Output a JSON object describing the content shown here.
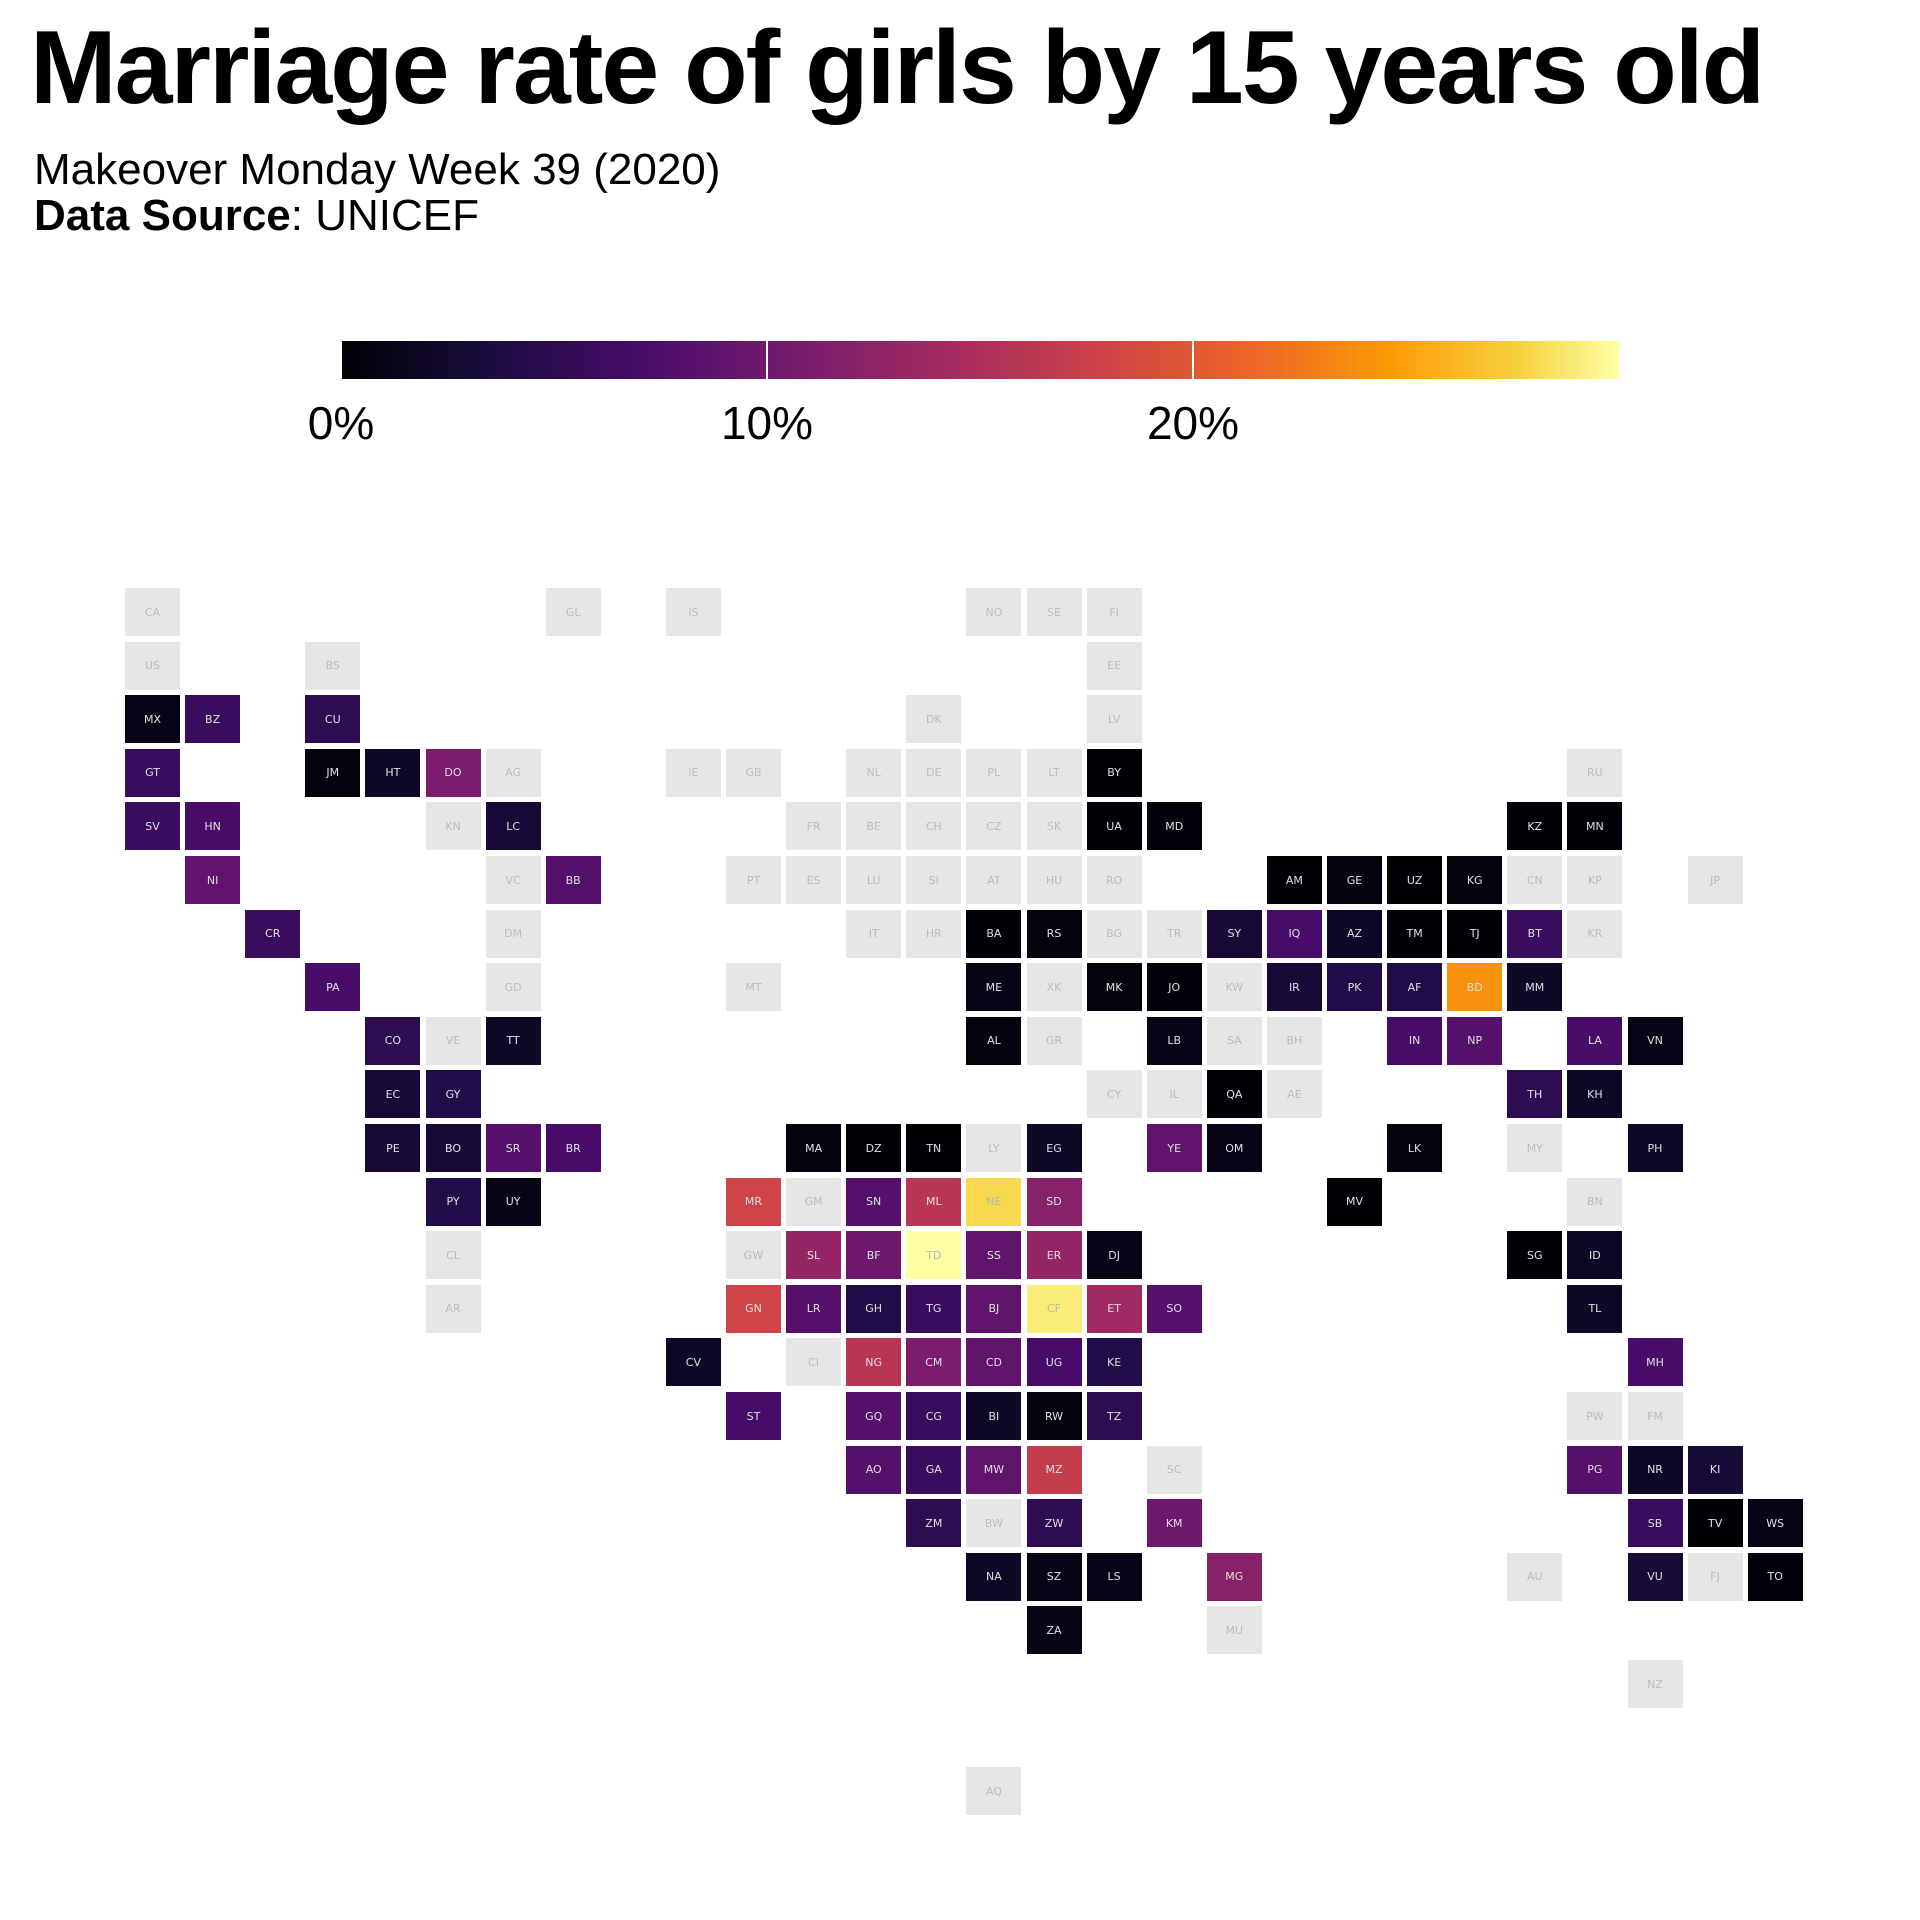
{
  "header": {
    "title": "Marriage rate of girls by 15  years old",
    "subtitle": "Makeover Monday  Week 39 (2020)",
    "source_label": "Data Source",
    "source_value": ": UNICEF"
  },
  "legend": {
    "ticks": [
      {
        "value": 0,
        "label": "0%"
      },
      {
        "value": 10,
        "label": "10%"
      },
      {
        "value": 20,
        "label": "20%"
      }
    ],
    "min": 0,
    "max": 30,
    "palette": "inferno",
    "no_data_color": "#e6e6e6"
  },
  "map_data": {
    "tiles": [
      {
        "code": "CA",
        "col": 0,
        "row": 0,
        "value": null
      },
      {
        "code": "GL",
        "col": 7,
        "row": 0,
        "value": null
      },
      {
        "code": "IS",
        "col": 9,
        "row": 0,
        "value": null
      },
      {
        "code": "NO",
        "col": 14,
        "row": 0,
        "value": null
      },
      {
        "code": "SE",
        "col": 15,
        "row": 0,
        "value": null
      },
      {
        "code": "FI",
        "col": 16,
        "row": 0,
        "value": null
      },
      {
        "code": "US",
        "col": 0,
        "row": 1,
        "value": null
      },
      {
        "code": "BS",
        "col": 3,
        "row": 1,
        "value": null
      },
      {
        "code": "EE",
        "col": 16,
        "row": 1,
        "value": null
      },
      {
        "code": "MX",
        "col": 0,
        "row": 2,
        "value": 1
      },
      {
        "code": "BZ",
        "col": 1,
        "row": 2,
        "value": 6
      },
      {
        "code": "CU",
        "col": 3,
        "row": 2,
        "value": 5
      },
      {
        "code": "DK",
        "col": 13,
        "row": 2,
        "value": null
      },
      {
        "code": "LV",
        "col": 16,
        "row": 2,
        "value": null
      },
      {
        "code": "GT",
        "col": 0,
        "row": 3,
        "value": 6
      },
      {
        "code": "JM",
        "col": 3,
        "row": 3,
        "value": 0.5
      },
      {
        "code": "HT",
        "col": 4,
        "row": 3,
        "value": 2
      },
      {
        "code": "DO",
        "col": 5,
        "row": 3,
        "value": 11
      },
      {
        "code": "AG",
        "col": 6,
        "row": 3,
        "value": null
      },
      {
        "code": "IE",
        "col": 9,
        "row": 3,
        "value": null
      },
      {
        "code": "GB",
        "col": 10,
        "row": 3,
        "value": null
      },
      {
        "code": "NL",
        "col": 12,
        "row": 3,
        "value": null
      },
      {
        "code": "DE",
        "col": 13,
        "row": 3,
        "value": null
      },
      {
        "code": "PL",
        "col": 14,
        "row": 3,
        "value": null
      },
      {
        "code": "LT",
        "col": 15,
        "row": 3,
        "value": null
      },
      {
        "code": "BY",
        "col": 16,
        "row": 3,
        "value": 0
      },
      {
        "code": "RU",
        "col": 24,
        "row": 3,
        "value": null
      },
      {
        "code": "SV",
        "col": 0,
        "row": 4,
        "value": 6
      },
      {
        "code": "HN",
        "col": 1,
        "row": 4,
        "value": 7
      },
      {
        "code": "KN",
        "col": 5,
        "row": 4,
        "value": null
      },
      {
        "code": "LC",
        "col": 6,
        "row": 4,
        "value": 3
      },
      {
        "code": "FR",
        "col": 11,
        "row": 4,
        "value": null
      },
      {
        "code": "BE",
        "col": 12,
        "row": 4,
        "value": null
      },
      {
        "code": "CH",
        "col": 13,
        "row": 4,
        "value": null
      },
      {
        "code": "CZ",
        "col": 14,
        "row": 4,
        "value": null
      },
      {
        "code": "SK",
        "col": 15,
        "row": 4,
        "value": null
      },
      {
        "code": "UA",
        "col": 16,
        "row": 4,
        "value": 0.1
      },
      {
        "code": "MD",
        "col": 17,
        "row": 4,
        "value": 0.3
      },
      {
        "code": "KZ",
        "col": 23,
        "row": 4,
        "value": 0.1
      },
      {
        "code": "MN",
        "col": 24,
        "row": 4,
        "value": 0.1
      },
      {
        "code": "NI",
        "col": 1,
        "row": 5,
        "value": 9
      },
      {
        "code": "VC",
        "col": 6,
        "row": 5,
        "value": null
      },
      {
        "code": "BB",
        "col": 7,
        "row": 5,
        "value": 8
      },
      {
        "code": "PT",
        "col": 10,
        "row": 5,
        "value": null
      },
      {
        "code": "ES",
        "col": 11,
        "row": 5,
        "value": null
      },
      {
        "code": "LU",
        "col": 12,
        "row": 5,
        "value": null
      },
      {
        "code": "SI",
        "col": 13,
        "row": 5,
        "value": null
      },
      {
        "code": "AT",
        "col": 14,
        "row": 5,
        "value": null
      },
      {
        "code": "HU",
        "col": 15,
        "row": 5,
        "value": null
      },
      {
        "code": "RO",
        "col": 16,
        "row": 5,
        "value": null
      },
      {
        "code": "AM",
        "col": 19,
        "row": 5,
        "value": 0
      },
      {
        "code": "GE",
        "col": 20,
        "row": 5,
        "value": 0.5
      },
      {
        "code": "UZ",
        "col": 21,
        "row": 5,
        "value": 0
      },
      {
        "code": "KG",
        "col": 22,
        "row": 5,
        "value": 0.5
      },
      {
        "code": "CN",
        "col": 23,
        "row": 5,
        "value": null
      },
      {
        "code": "KP",
        "col": 24,
        "row": 5,
        "value": null
      },
      {
        "code": "JP",
        "col": 26,
        "row": 5,
        "value": null
      },
      {
        "code": "CR",
        "col": 2,
        "row": 6,
        "value": 6
      },
      {
        "code": "DM",
        "col": 6,
        "row": 6,
        "value": null
      },
      {
        "code": "IT",
        "col": 12,
        "row": 6,
        "value": null
      },
      {
        "code": "HR",
        "col": 13,
        "row": 6,
        "value": null
      },
      {
        "code": "BA",
        "col": 14,
        "row": 6,
        "value": 0.1
      },
      {
        "code": "RS",
        "col": 15,
        "row": 6,
        "value": 0.5
      },
      {
        "code": "BG",
        "col": 16,
        "row": 6,
        "value": null
      },
      {
        "code": "TR",
        "col": 17,
        "row": 6,
        "value": null
      },
      {
        "code": "SY",
        "col": 18,
        "row": 6,
        "value": 3
      },
      {
        "code": "IQ",
        "col": 19,
        "row": 6,
        "value": 7
      },
      {
        "code": "AZ",
        "col": 20,
        "row": 6,
        "value": 2
      },
      {
        "code": "TM",
        "col": 21,
        "row": 6,
        "value": 0.1
      },
      {
        "code": "TJ",
        "col": 22,
        "row": 6,
        "value": 0.1
      },
      {
        "code": "BT",
        "col": 23,
        "row": 6,
        "value": 6
      },
      {
        "code": "KR",
        "col": 24,
        "row": 6,
        "value": null
      },
      {
        "code": "PA",
        "col": 3,
        "row": 7,
        "value": 7
      },
      {
        "code": "GD",
        "col": 6,
        "row": 7,
        "value": null
      },
      {
        "code": "MT",
        "col": 10,
        "row": 7,
        "value": null
      },
      {
        "code": "ME",
        "col": 14,
        "row": 7,
        "value": 1
      },
      {
        "code": "XK",
        "col": 15,
        "row": 7,
        "value": null
      },
      {
        "code": "MK",
        "col": 16,
        "row": 7,
        "value": 0.5
      },
      {
        "code": "JO",
        "col": 17,
        "row": 7,
        "value": 0.3
      },
      {
        "code": "KW",
        "col": 18,
        "row": 7,
        "value": null
      },
      {
        "code": "IR",
        "col": 19,
        "row": 7,
        "value": 3
      },
      {
        "code": "PK",
        "col": 20,
        "row": 7,
        "value": 4
      },
      {
        "code": "AF",
        "col": 21,
        "row": 7,
        "value": 4
      },
      {
        "code": "BD",
        "col": 22,
        "row": 7,
        "value": 24
      },
      {
        "code": "MM",
        "col": 23,
        "row": 7,
        "value": 2
      },
      {
        "code": "CO",
        "col": 4,
        "row": 8,
        "value": 5
      },
      {
        "code": "VE",
        "col": 5,
        "row": 8,
        "value": null
      },
      {
        "code": "TT",
        "col": 6,
        "row": 8,
        "value": 2
      },
      {
        "code": "AL",
        "col": 14,
        "row": 8,
        "value": 0.5
      },
      {
        "code": "GR",
        "col": 15,
        "row": 8,
        "value": null
      },
      {
        "code": "LB",
        "col": 17,
        "row": 8,
        "value": 1
      },
      {
        "code": "SA",
        "col": 18,
        "row": 8,
        "value": null
      },
      {
        "code": "BH",
        "col": 19,
        "row": 8,
        "value": null
      },
      {
        "code": "IN",
        "col": 21,
        "row": 8,
        "value": 7
      },
      {
        "code": "NP",
        "col": 22,
        "row": 8,
        "value": 8
      },
      {
        "code": "LA",
        "col": 24,
        "row": 8,
        "value": 7
      },
      {
        "code": "VN",
        "col": 25,
        "row": 8,
        "value": 1
      },
      {
        "code": "EC",
        "col": 4,
        "row": 9,
        "value": 3
      },
      {
        "code": "GY",
        "col": 5,
        "row": 9,
        "value": 4
      },
      {
        "code": "CY",
        "col": 16,
        "row": 9,
        "value": null
      },
      {
        "code": "IL",
        "col": 17,
        "row": 9,
        "value": null
      },
      {
        "code": "QA",
        "col": 18,
        "row": 9,
        "value": 0
      },
      {
        "code": "AE",
        "col": 19,
        "row": 9,
        "value": null
      },
      {
        "code": "TH",
        "col": 23,
        "row": 9,
        "value": 5
      },
      {
        "code": "KH",
        "col": 24,
        "row": 9,
        "value": 2
      },
      {
        "code": "PE",
        "col": 4,
        "row": 10,
        "value": 3
      },
      {
        "code": "BO",
        "col": 5,
        "row": 10,
        "value": 3
      },
      {
        "code": "SR",
        "col": 6,
        "row": 10,
        "value": 8
      },
      {
        "code": "BR",
        "col": 7,
        "row": 10,
        "value": 7
      },
      {
        "code": "MA",
        "col": 11,
        "row": 10,
        "value": 0.5
      },
      {
        "code": "DZ",
        "col": 12,
        "row": 10,
        "value": 0.1
      },
      {
        "code": "TN",
        "col": 13,
        "row": 10,
        "value": 0
      },
      {
        "code": "LY",
        "col": 14,
        "row": 10,
        "value": null
      },
      {
        "code": "EG",
        "col": 15,
        "row": 10,
        "value": 2
      },
      {
        "code": "YE",
        "col": 17,
        "row": 10,
        "value": 9
      },
      {
        "code": "OM",
        "col": 18,
        "row": 10,
        "value": 1
      },
      {
        "code": "LK",
        "col": 21,
        "row": 10,
        "value": 0.5
      },
      {
        "code": "MY",
        "col": 23,
        "row": 10,
        "value": null
      },
      {
        "code": "PH",
        "col": 25,
        "row": 10,
        "value": 2
      },
      {
        "code": "PY",
        "col": 5,
        "row": 11,
        "value": 4
      },
      {
        "code": "UY",
        "col": 6,
        "row": 11,
        "value": 1
      },
      {
        "code": "MR",
        "col": 10,
        "row": 11,
        "value": 18
      },
      {
        "code": "GM",
        "col": 11,
        "row": 11,
        "value": null
      },
      {
        "code": "SN",
        "col": 12,
        "row": 11,
        "value": 8
      },
      {
        "code": "ML",
        "col": 13,
        "row": 11,
        "value": 16
      },
      {
        "code": "NE",
        "col": 14,
        "row": 11,
        "value": 28
      },
      {
        "code": "SD",
        "col": 15,
        "row": 11,
        "value": 12
      },
      {
        "code": "MV",
        "col": 20,
        "row": 11,
        "value": 0
      },
      {
        "code": "BN",
        "col": 24,
        "row": 11,
        "value": null
      },
      {
        "code": "CL",
        "col": 5,
        "row": 12,
        "value": null
      },
      {
        "code": "GW",
        "col": 10,
        "row": 12,
        "value": null
      },
      {
        "code": "SL",
        "col": 11,
        "row": 12,
        "value": 13
      },
      {
        "code": "BF",
        "col": 12,
        "row": 12,
        "value": 10
      },
      {
        "code": "TD",
        "col": 13,
        "row": 12,
        "value": 30
      },
      {
        "code": "SS",
        "col": 14,
        "row": 12,
        "value": 9
      },
      {
        "code": "ER",
        "col": 15,
        "row": 12,
        "value": 13
      },
      {
        "code": "DJ",
        "col": 16,
        "row": 12,
        "value": 1
      },
      {
        "code": "SG",
        "col": 23,
        "row": 12,
        "value": 0
      },
      {
        "code": "ID",
        "col": 24,
        "row": 12,
        "value": 2
      },
      {
        "code": "AR",
        "col": 5,
        "row": 13,
        "value": null
      },
      {
        "code": "GN",
        "col": 10,
        "row": 13,
        "value": 18
      },
      {
        "code": "LR",
        "col": 11,
        "row": 13,
        "value": 8
      },
      {
        "code": "GH",
        "col": 12,
        "row": 13,
        "value": 4
      },
      {
        "code": "TG",
        "col": 13,
        "row": 13,
        "value": 6
      },
      {
        "code": "BJ",
        "col": 14,
        "row": 13,
        "value": 9
      },
      {
        "code": "CF",
        "col": 15,
        "row": 13,
        "value": 29
      },
      {
        "code": "ET",
        "col": 16,
        "row": 13,
        "value": 14
      },
      {
        "code": "SO",
        "col": 17,
        "row": 13,
        "value": 8
      },
      {
        "code": "TL",
        "col": 24,
        "row": 13,
        "value": 2
      },
      {
        "code": "CV",
        "col": 9,
        "row": 14,
        "value": 2
      },
      {
        "code": "CI",
        "col": 11,
        "row": 14,
        "value": null
      },
      {
        "code": "NG",
        "col": 12,
        "row": 14,
        "value": 16
      },
      {
        "code": "CM",
        "col": 13,
        "row": 14,
        "value": 11
      },
      {
        "code": "CD",
        "col": 14,
        "row": 14,
        "value": 9
      },
      {
        "code": "UG",
        "col": 15,
        "row": 14,
        "value": 7
      },
      {
        "code": "KE",
        "col": 16,
        "row": 14,
        "value": 4
      },
      {
        "code": "MH",
        "col": 25,
        "row": 14,
        "value": 7
      },
      {
        "code": "ST",
        "col": 10,
        "row": 15,
        "value": 7
      },
      {
        "code": "GQ",
        "col": 12,
        "row": 15,
        "value": 8
      },
      {
        "code": "CG",
        "col": 13,
        "row": 15,
        "value": 6
      },
      {
        "code": "BI",
        "col": 14,
        "row": 15,
        "value": 2
      },
      {
        "code": "RW",
        "col": 15,
        "row": 15,
        "value": 0.5
      },
      {
        "code": "TZ",
        "col": 16,
        "row": 15,
        "value": 5
      },
      {
        "code": "PW",
        "col": 24,
        "row": 15,
        "value": null
      },
      {
        "code": "FM",
        "col": 25,
        "row": 15,
        "value": null
      },
      {
        "code": "AO",
        "col": 12,
        "row": 16,
        "value": 8
      },
      {
        "code": "GA",
        "col": 13,
        "row": 16,
        "value": 6
      },
      {
        "code": "MW",
        "col": 14,
        "row": 16,
        "value": 9
      },
      {
        "code": "MZ",
        "col": 15,
        "row": 16,
        "value": 17
      },
      {
        "code": "SC",
        "col": 17,
        "row": 16,
        "value": null
      },
      {
        "code": "PG",
        "col": 24,
        "row": 16,
        "value": 8
      },
      {
        "code": "NR",
        "col": 25,
        "row": 16,
        "value": 2
      },
      {
        "code": "KI",
        "col": 26,
        "row": 16,
        "value": 3
      },
      {
        "code": "ZM",
        "col": 13,
        "row": 17,
        "value": 5
      },
      {
        "code": "BW",
        "col": 14,
        "row": 17,
        "value": null
      },
      {
        "code": "ZW",
        "col": 15,
        "row": 17,
        "value": 5
      },
      {
        "code": "KM",
        "col": 17,
        "row": 17,
        "value": 10
      },
      {
        "code": "SB",
        "col": 25,
        "row": 17,
        "value": 6
      },
      {
        "code": "TV",
        "col": 26,
        "row": 17,
        "value": 0
      },
      {
        "code": "WS",
        "col": 27,
        "row": 17,
        "value": 1
      },
      {
        "code": "NA",
        "col": 14,
        "row": 18,
        "value": 2
      },
      {
        "code": "SZ",
        "col": 15,
        "row": 18,
        "value": 1
      },
      {
        "code": "LS",
        "col": 16,
        "row": 18,
        "value": 1
      },
      {
        "code": "MG",
        "col": 18,
        "row": 18,
        "value": 12
      },
      {
        "code": "AU",
        "col": 23,
        "row": 18,
        "value": null
      },
      {
        "code": "VU",
        "col": 25,
        "row": 18,
        "value": 3
      },
      {
        "code": "FJ",
        "col": 26,
        "row": 18,
        "value": null
      },
      {
        "code": "TO",
        "col": 27,
        "row": 18,
        "value": 0.3
      },
      {
        "code": "ZA",
        "col": 15,
        "row": 19,
        "value": 1
      },
      {
        "code": "MU",
        "col": 18,
        "row": 19,
        "value": null
      },
      {
        "code": "NZ",
        "col": 25,
        "row": 20,
        "value": null
      },
      {
        "code": "AQ",
        "col": 14,
        "row": 22,
        "value": null
      }
    ]
  }
}
